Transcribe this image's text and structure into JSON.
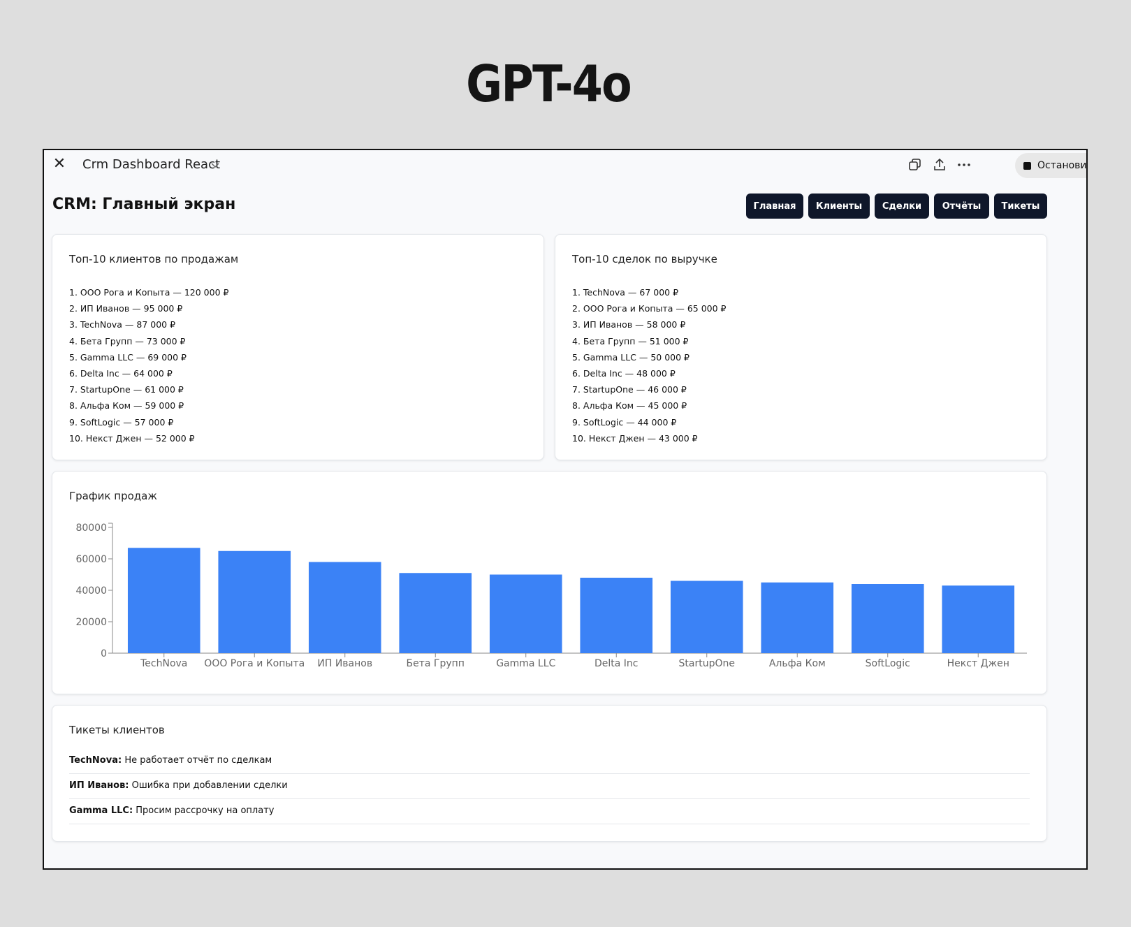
{
  "header_label": "GPT-4o",
  "app": {
    "title": "Crm Dashboard React",
    "stop_label": "Остановить"
  },
  "page": {
    "title": "CRM: Главный экран"
  },
  "nav": [
    "Главная",
    "Клиенты",
    "Сделки",
    "Отчёты",
    "Тикеты"
  ],
  "top_clients": {
    "title": "Топ-10 клиентов по продажам",
    "items": [
      "1. ООО Рога и Копыта — 120 000 ₽",
      "2. ИП Иванов — 95 000 ₽",
      "3. TechNova — 87 000 ₽",
      "4. Бета Групп — 73 000 ₽",
      "5. Gamma LLC — 69 000 ₽",
      "6. Delta Inc — 64 000 ₽",
      "7. StartupOne — 61 000 ₽",
      "8. Альфа Ком — 59 000 ₽",
      "9. SoftLogic — 57 000 ₽",
      "10. Некст Джен — 52 000 ₽"
    ]
  },
  "top_deals": {
    "title": "Топ-10 сделок по выручке",
    "items": [
      "1. TechNova — 67 000 ₽",
      "2. ООО Рога и Копыта — 65 000 ₽",
      "3. ИП Иванов — 58 000 ₽",
      "4. Бета Групп — 51 000 ₽",
      "5. Gamma LLC — 50 000 ₽",
      "6. Delta Inc — 48 000 ₽",
      "7. StartupOne — 46 000 ₽",
      "8. Альфа Ком — 45 000 ₽",
      "9. SoftLogic — 44 000 ₽",
      "10. Некст Джен — 43 000 ₽"
    ]
  },
  "sales_chart": {
    "title": "График продаж"
  },
  "chart_data": {
    "type": "bar",
    "title": "",
    "categories": [
      "TechNova",
      "ООО Рога и Копыта",
      "ИП Иванов",
      "Бета Групп",
      "Gamma LLC",
      "Delta Inc",
      "StartupOne",
      "Альфа Ком",
      "SoftLogic",
      "Некст Джен"
    ],
    "values": [
      67000,
      65000,
      58000,
      51000,
      50000,
      48000,
      46000,
      45000,
      44000,
      43000
    ],
    "yticks": [
      "0",
      "20000",
      "40000",
      "60000",
      "80000"
    ],
    "ylim": [
      0,
      80000
    ],
    "bar_color": "#3b82f6",
    "grid": false
  },
  "tickets": {
    "title": "Тикеты клиентов",
    "items": [
      {
        "client": "TechNova:",
        "text": "Не работает отчёт по сделкам"
      },
      {
        "client": "ИП Иванов:",
        "text": "Ошибка при добавлении сделки"
      },
      {
        "client": "Gamma LLC:",
        "text": "Просим рассрочку на оплату"
      }
    ]
  },
  "icons": [
    "close-icon",
    "chevron-down-icon",
    "copy-icon",
    "share-icon",
    "more-icon",
    "stop-icon"
  ]
}
